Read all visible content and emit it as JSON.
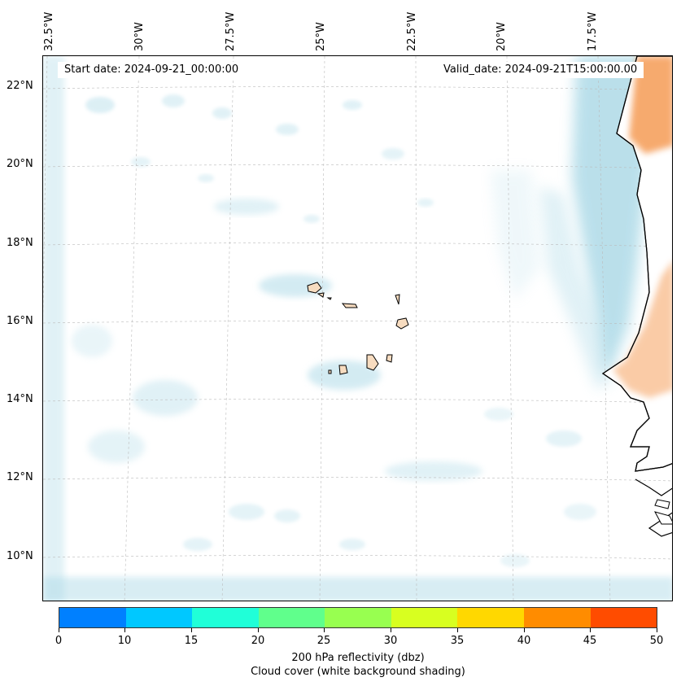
{
  "map": {
    "start_date": "Start date: 2024-09-21_00:00:00",
    "valid_date": "Valid_date: 2024-09-21T15:00:00.00",
    "longitude_labels": [
      "32.5°W",
      "30°W",
      "27.5°W",
      "25°W",
      "22.5°W",
      "20°W",
      "17.5°W"
    ],
    "latitude_labels": [
      "22°N",
      "20°N",
      "18°N",
      "16°N",
      "14°N",
      "12°N",
      "10°N"
    ],
    "region": "Cape Verde Islands and West African coast",
    "shading_colors": {
      "cloud_cover": "#a9d8e6",
      "reflectivity_high": "#f6a15e",
      "island_fill": "#f7dcc0"
    }
  },
  "colorbar": {
    "ticks": [
      "0",
      "10",
      "15",
      "20",
      "25",
      "30",
      "35",
      "40",
      "45",
      "50"
    ],
    "colors": [
      "#0080ff",
      "#00c8ff",
      "#20ffd8",
      "#60ff8c",
      "#98ff50",
      "#d8ff20",
      "#ffd800",
      "#ff8c00",
      "#ff4c00"
    ],
    "label_line1": "200 hPa reflectivity (dbz)",
    "label_line2": "Cloud cover (white background shading)"
  }
}
